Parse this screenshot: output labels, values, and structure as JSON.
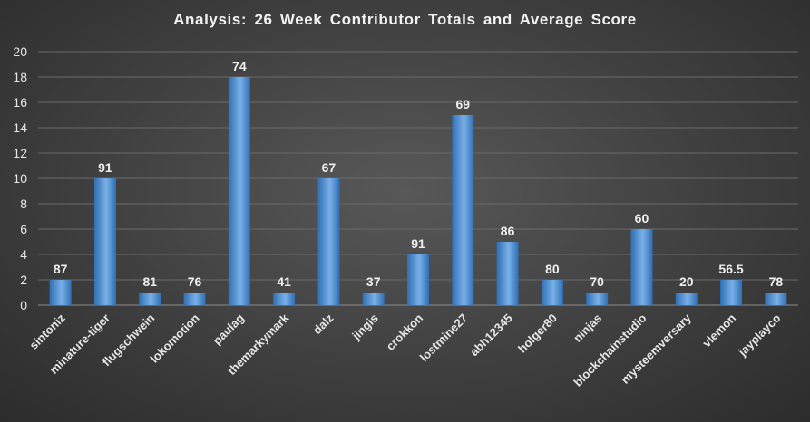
{
  "chart_data": {
    "type": "bar",
    "title": "Analysis:  26 Week Contributor Totals and Average Score",
    "xlabel": "",
    "ylabel": "",
    "ylim": [
      0,
      20
    ],
    "yticks": [
      0,
      2,
      4,
      6,
      8,
      10,
      12,
      14,
      16,
      18,
      20
    ],
    "grid": true,
    "categories": [
      "sintoniz",
      "minature-tiger",
      "flugschwein",
      "lokomotion",
      "paulag",
      "themarkymark",
      "dalz",
      "jingis",
      "crokkon",
      "lostmine27",
      "abh12345",
      "holger80",
      "ninjas",
      "blockchainstudio",
      "mysteemversary",
      "vlemon",
      "jayplayco"
    ],
    "series": [
      {
        "name": "Contributor Totals",
        "values": [
          2,
          10,
          1,
          1,
          18,
          1,
          10,
          1,
          4,
          15,
          5,
          2,
          1,
          6,
          1,
          2,
          1
        ]
      }
    ],
    "data_labels": [
      "87",
      "91",
      "81",
      "76",
      "74",
      "41",
      "67",
      "37",
      "91",
      "69",
      "86",
      "80",
      "70",
      "60",
      "20",
      "56.5",
      "78"
    ],
    "colors": {
      "bar_top": "#7ab0e8",
      "bar_bottom": "#2f6fb3"
    }
  }
}
